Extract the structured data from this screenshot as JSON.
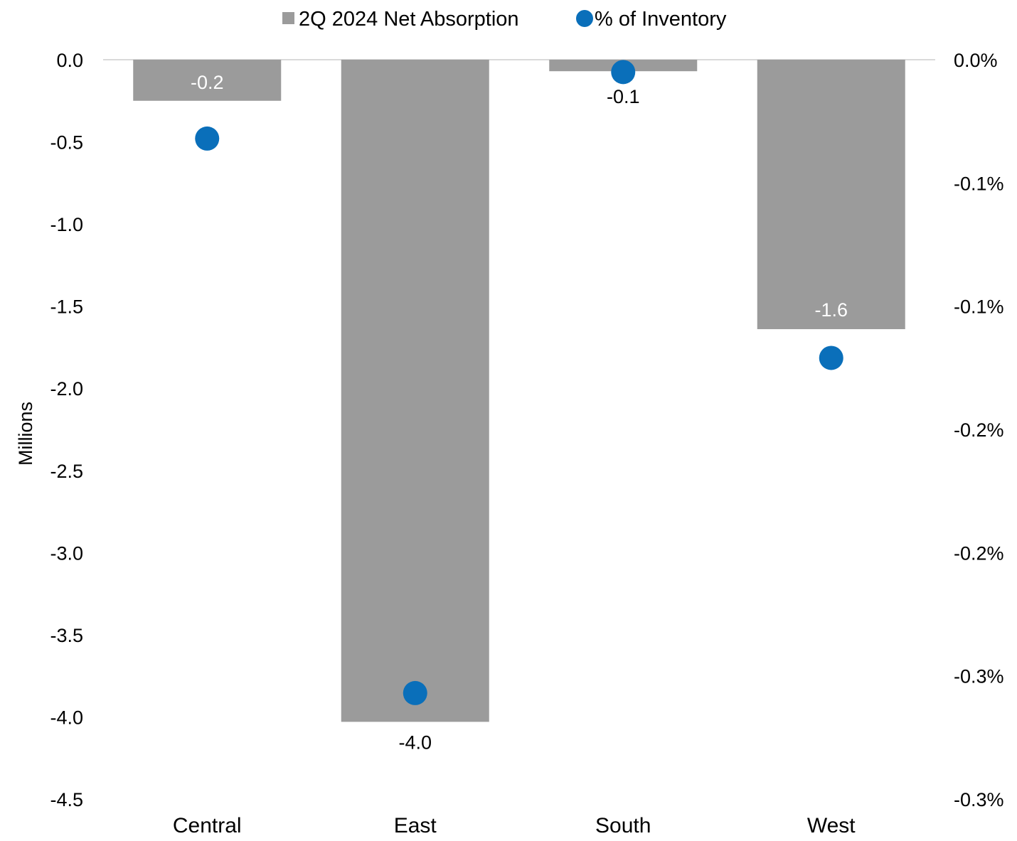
{
  "chart_data": {
    "type": "bar",
    "categories": [
      "Central",
      "East",
      "South",
      "West"
    ],
    "series": [
      {
        "name": "2Q 2024 Net Absorption",
        "kind": "bar",
        "axis": "left",
        "color": "#9b9b9b",
        "values": [
          -0.25,
          -4.03,
          -0.07,
          -1.64
        ],
        "labels": [
          "-0.2",
          "-4.0",
          "-0.1",
          "-1.6"
        ]
      },
      {
        "name": "% of Inventory",
        "kind": "scatter",
        "axis": "right",
        "color": "#0a6fba",
        "values": [
          -0.032,
          -0.257,
          -0.005,
          -0.121
        ]
      }
    ],
    "title": "",
    "ylabel": "Millions",
    "xlabel": "",
    "ylim": [
      -4.5,
      0
    ],
    "y_ticks": [
      "0.0",
      "-0.5",
      "-1.0",
      "-1.5",
      "-2.0",
      "-2.5",
      "-3.0",
      "-3.5",
      "-4.0",
      "-4.5"
    ],
    "y2lim": [
      -0.3,
      0
    ],
    "y2_ticks": [
      "0.0%",
      "-0.1%",
      "-0.1%",
      "-0.2%",
      "-0.2%",
      "-0.3%",
      "-0.3%"
    ],
    "legend_position": "top-center",
    "grid": false
  }
}
